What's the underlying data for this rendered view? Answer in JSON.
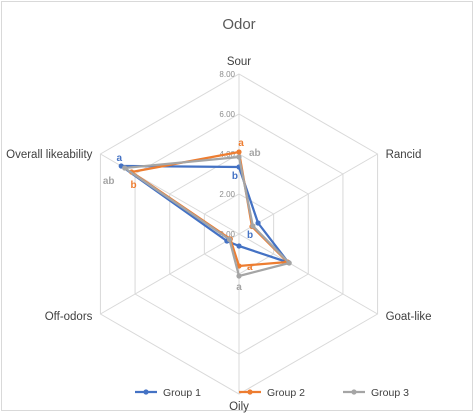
{
  "chart_data": {
    "type": "radar",
    "title": "Odor",
    "axes": [
      "Sour",
      "Rancid",
      "Goat-like",
      "Oily",
      "Off-odors",
      "Overall likeability"
    ],
    "scale": {
      "min": 0,
      "max": 8,
      "ticks": [
        "0.00",
        "2.00",
        "4.00",
        "6.00",
        "8.00"
      ],
      "tick_values": [
        0,
        2,
        4,
        6,
        8
      ]
    },
    "grid": true,
    "legend_position": "bottom",
    "series": [
      {
        "name": "Group 1",
        "color": "#4472c4",
        "values": [
          3.35,
          1.1,
          2.85,
          0.6,
          0.7,
          6.8
        ]
      },
      {
        "name": "Group 2",
        "color": "#ed7d31",
        "values": [
          4.1,
          0.75,
          2.8,
          1.6,
          0.5,
          6.2
        ]
      },
      {
        "name": "Group 3",
        "color": "#a5a5a5",
        "values": [
          3.85,
          0.8,
          2.9,
          2.1,
          0.55,
          6.6
        ]
      }
    ],
    "annotations": [
      {
        "axis": "Sour",
        "series": "Group 2",
        "text": "a"
      },
      {
        "axis": "Sour",
        "series": "Group 3",
        "text": "ab"
      },
      {
        "axis": "Sour",
        "series": "Group 1",
        "text": "b"
      },
      {
        "axis": "Overall likeability",
        "series": "Group 1",
        "text": "a"
      },
      {
        "axis": "Overall likeability",
        "series": "Group 3",
        "text": "ab"
      },
      {
        "axis": "Overall likeability",
        "series": "Group 2",
        "text": "b"
      },
      {
        "axis": "Oily",
        "series": "Group 1",
        "text": "b"
      },
      {
        "axis": "Oily",
        "series": "Group 2",
        "text": "a"
      },
      {
        "axis": "Oily",
        "series": "Group 3",
        "text": "a"
      }
    ]
  }
}
